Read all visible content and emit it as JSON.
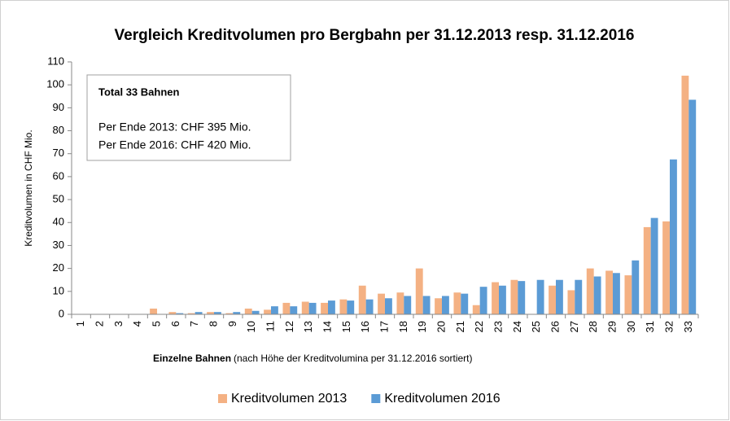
{
  "chart_data": {
    "type": "bar",
    "title": "Vergleich Kreditvolumen pro Bergbahn per 31.12.2013 resp. 31.12.2016",
    "ylabel": "Kreditvolumen in CHF Mio.",
    "xlabel_bold": "Einzelne Bahnen",
    "xlabel_note": "(nach Höhe der Kreditvolumina per 31.12.2016  sortiert)",
    "annotation": {
      "heading": "Total 33 Bahnen",
      "lines": [
        "Per Ende 2013: CHF 395 Mio.",
        "Per Ende 2016: CHF 420 Mio."
      ]
    },
    "categories": [
      "1",
      "2",
      "3",
      "4",
      "5",
      "6",
      "7",
      "8",
      "9",
      "10",
      "11",
      "12",
      "13",
      "14",
      "15",
      "16",
      "17",
      "18",
      "19",
      "20",
      "21",
      "22",
      "23",
      "24",
      "25",
      "26",
      "27",
      "28",
      "29",
      "30",
      "31",
      "32",
      "33"
    ],
    "series": [
      {
        "name": "Kreditvolumen 2013",
        "color": "#f4b183",
        "values": [
          0,
          0,
          0,
          0,
          2.5,
          1,
          0.5,
          1,
          0.5,
          2.5,
          2,
          5,
          5.5,
          5,
          6.5,
          12.5,
          9,
          9.5,
          20,
          7,
          9.5,
          4,
          14,
          15,
          0,
          12.5,
          10.5,
          20,
          19,
          17,
          38,
          40.5,
          104
        ]
      },
      {
        "name": "Kreditvolumen 2016",
        "color": "#5b9bd5",
        "values": [
          0,
          0,
          0,
          0,
          0,
          0.5,
          1,
          1,
          1,
          1.5,
          3.5,
          3.5,
          5,
          6,
          6,
          6.5,
          7,
          8,
          8,
          8,
          9,
          12,
          12.5,
          14.5,
          15,
          15,
          15,
          16.5,
          18,
          23.5,
          42,
          67.5,
          93.5
        ]
      }
    ],
    "ylim": [
      0,
      110
    ],
    "yticks": [
      0,
      10,
      20,
      30,
      40,
      50,
      60,
      70,
      80,
      90,
      100,
      110
    ],
    "grid": false,
    "legend": "bottom"
  }
}
